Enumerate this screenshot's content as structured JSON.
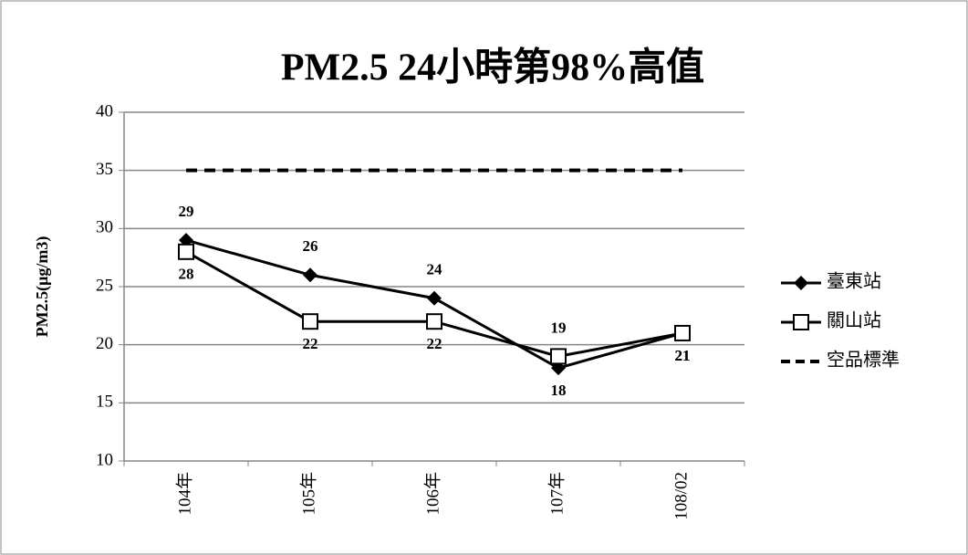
{
  "chart_data": {
    "type": "line",
    "title": "PM2.5 24小時第98%高值",
    "y_label": "PM2.5(μg/m3)",
    "categories": [
      "104年",
      "105年",
      "106年",
      "107年",
      "108/02"
    ],
    "series": [
      {
        "name": "臺東站",
        "color": "#000000",
        "marker": "diamond",
        "values": [
          29,
          26,
          24,
          18,
          21
        ]
      },
      {
        "name": "關山站",
        "color": "#000000",
        "marker": "square",
        "values": [
          28,
          22,
          22,
          19,
          21
        ]
      },
      {
        "name": "空品標準",
        "color": "#000000",
        "dashed": true,
        "values": [
          35,
          35,
          35,
          35,
          35
        ]
      }
    ],
    "ylim": [
      10,
      40
    ],
    "yticks": [
      10,
      15,
      20,
      25,
      30,
      35,
      40
    ],
    "grid": true,
    "legend": "right"
  }
}
